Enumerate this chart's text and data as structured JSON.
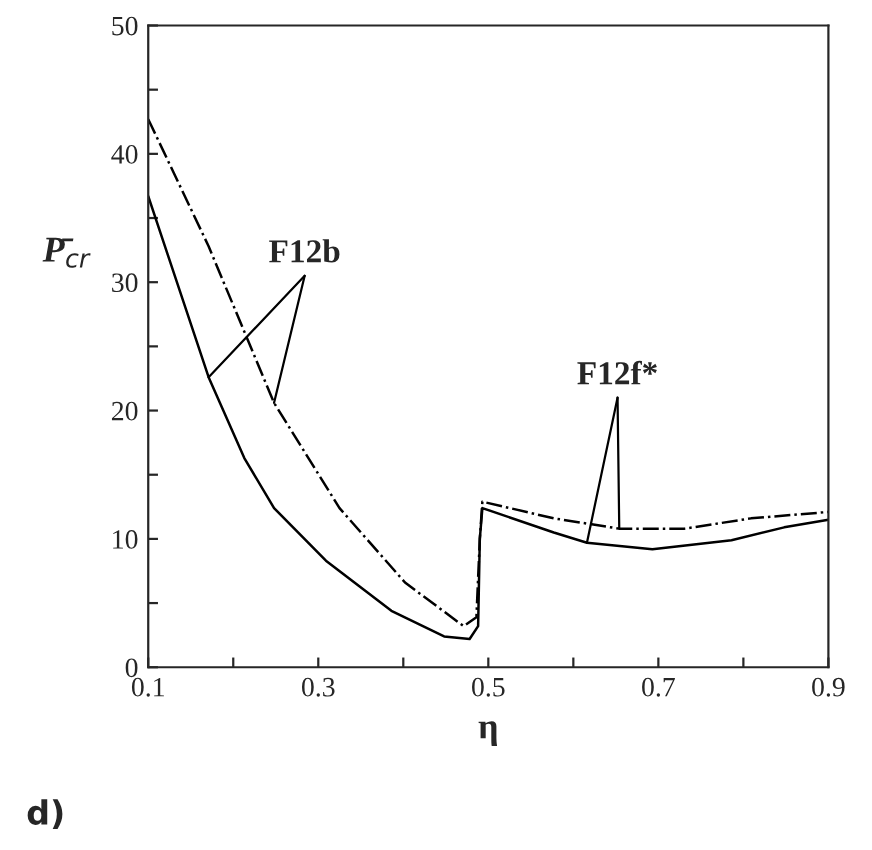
{
  "chart_data": {
    "type": "line",
    "xlabel": "η",
    "ylabel": "P̄$_{cr}$",
    "xlim": [
      0.1,
      0.9
    ],
    "ylim": [
      0,
      50
    ],
    "xticks": [
      0.1,
      {
        "value": 0.2,
        "label": null
      },
      0.3,
      {
        "value": 0.4,
        "label": null
      },
      0.5,
      {
        "value": 0.6,
        "label": null
      },
      0.7,
      {
        "value": 0.8,
        "label": null
      },
      0.9
    ],
    "yticks": [
      0,
      {
        "value": 5,
        "label": null
      },
      10,
      {
        "value": 15,
        "label": null
      },
      20,
      {
        "value": 25,
        "label": null
      },
      30,
      {
        "value": 35,
        "label": null
      },
      40,
      {
        "value": 45,
        "label": null
      },
      50
    ],
    "grid": false,
    "legend": false,
    "marker": "none",
    "series": [
      {
        "color": "#000000",
        "line_style": "solid",
        "x": [
          0.1,
          0.171,
          0.213,
          0.248,
          0.309,
          0.386,
          0.448,
          0.478,
          0.488,
          0.49,
          0.493,
          0.577,
          0.616,
          0.693,
          0.786,
          0.848,
          0.9
        ],
        "values": [
          36.7,
          22.6,
          16.3,
          12.4,
          8.3,
          4.4,
          2.4,
          2.2,
          3.2,
          10,
          12.4,
          10.5,
          9.7,
          9.2,
          9.9,
          10.9,
          11.5
        ]
      },
      {
        "color": "#000000",
        "line_style": "dashdot",
        "x": [
          0.1,
          0.171,
          0.248,
          0.325,
          0.402,
          0.471,
          0.486,
          0.49,
          0.493,
          0.577,
          0.654,
          0.731,
          0.809,
          0.9
        ],
        "values": [
          42.7,
          32.8,
          20.6,
          12.4,
          6.6,
          3.2,
          3.9,
          10,
          12.9,
          11.6,
          10.8,
          10.8,
          11.6,
          12.1
        ]
      }
    ],
    "annotations": [
      {
        "text": "F12b",
        "x": 0.171,
        "y": 22.6
      },
      {
        "text": "F12f*",
        "x": 0.616,
        "y": 9.7
      },
      "d)"
    ]
  }
}
